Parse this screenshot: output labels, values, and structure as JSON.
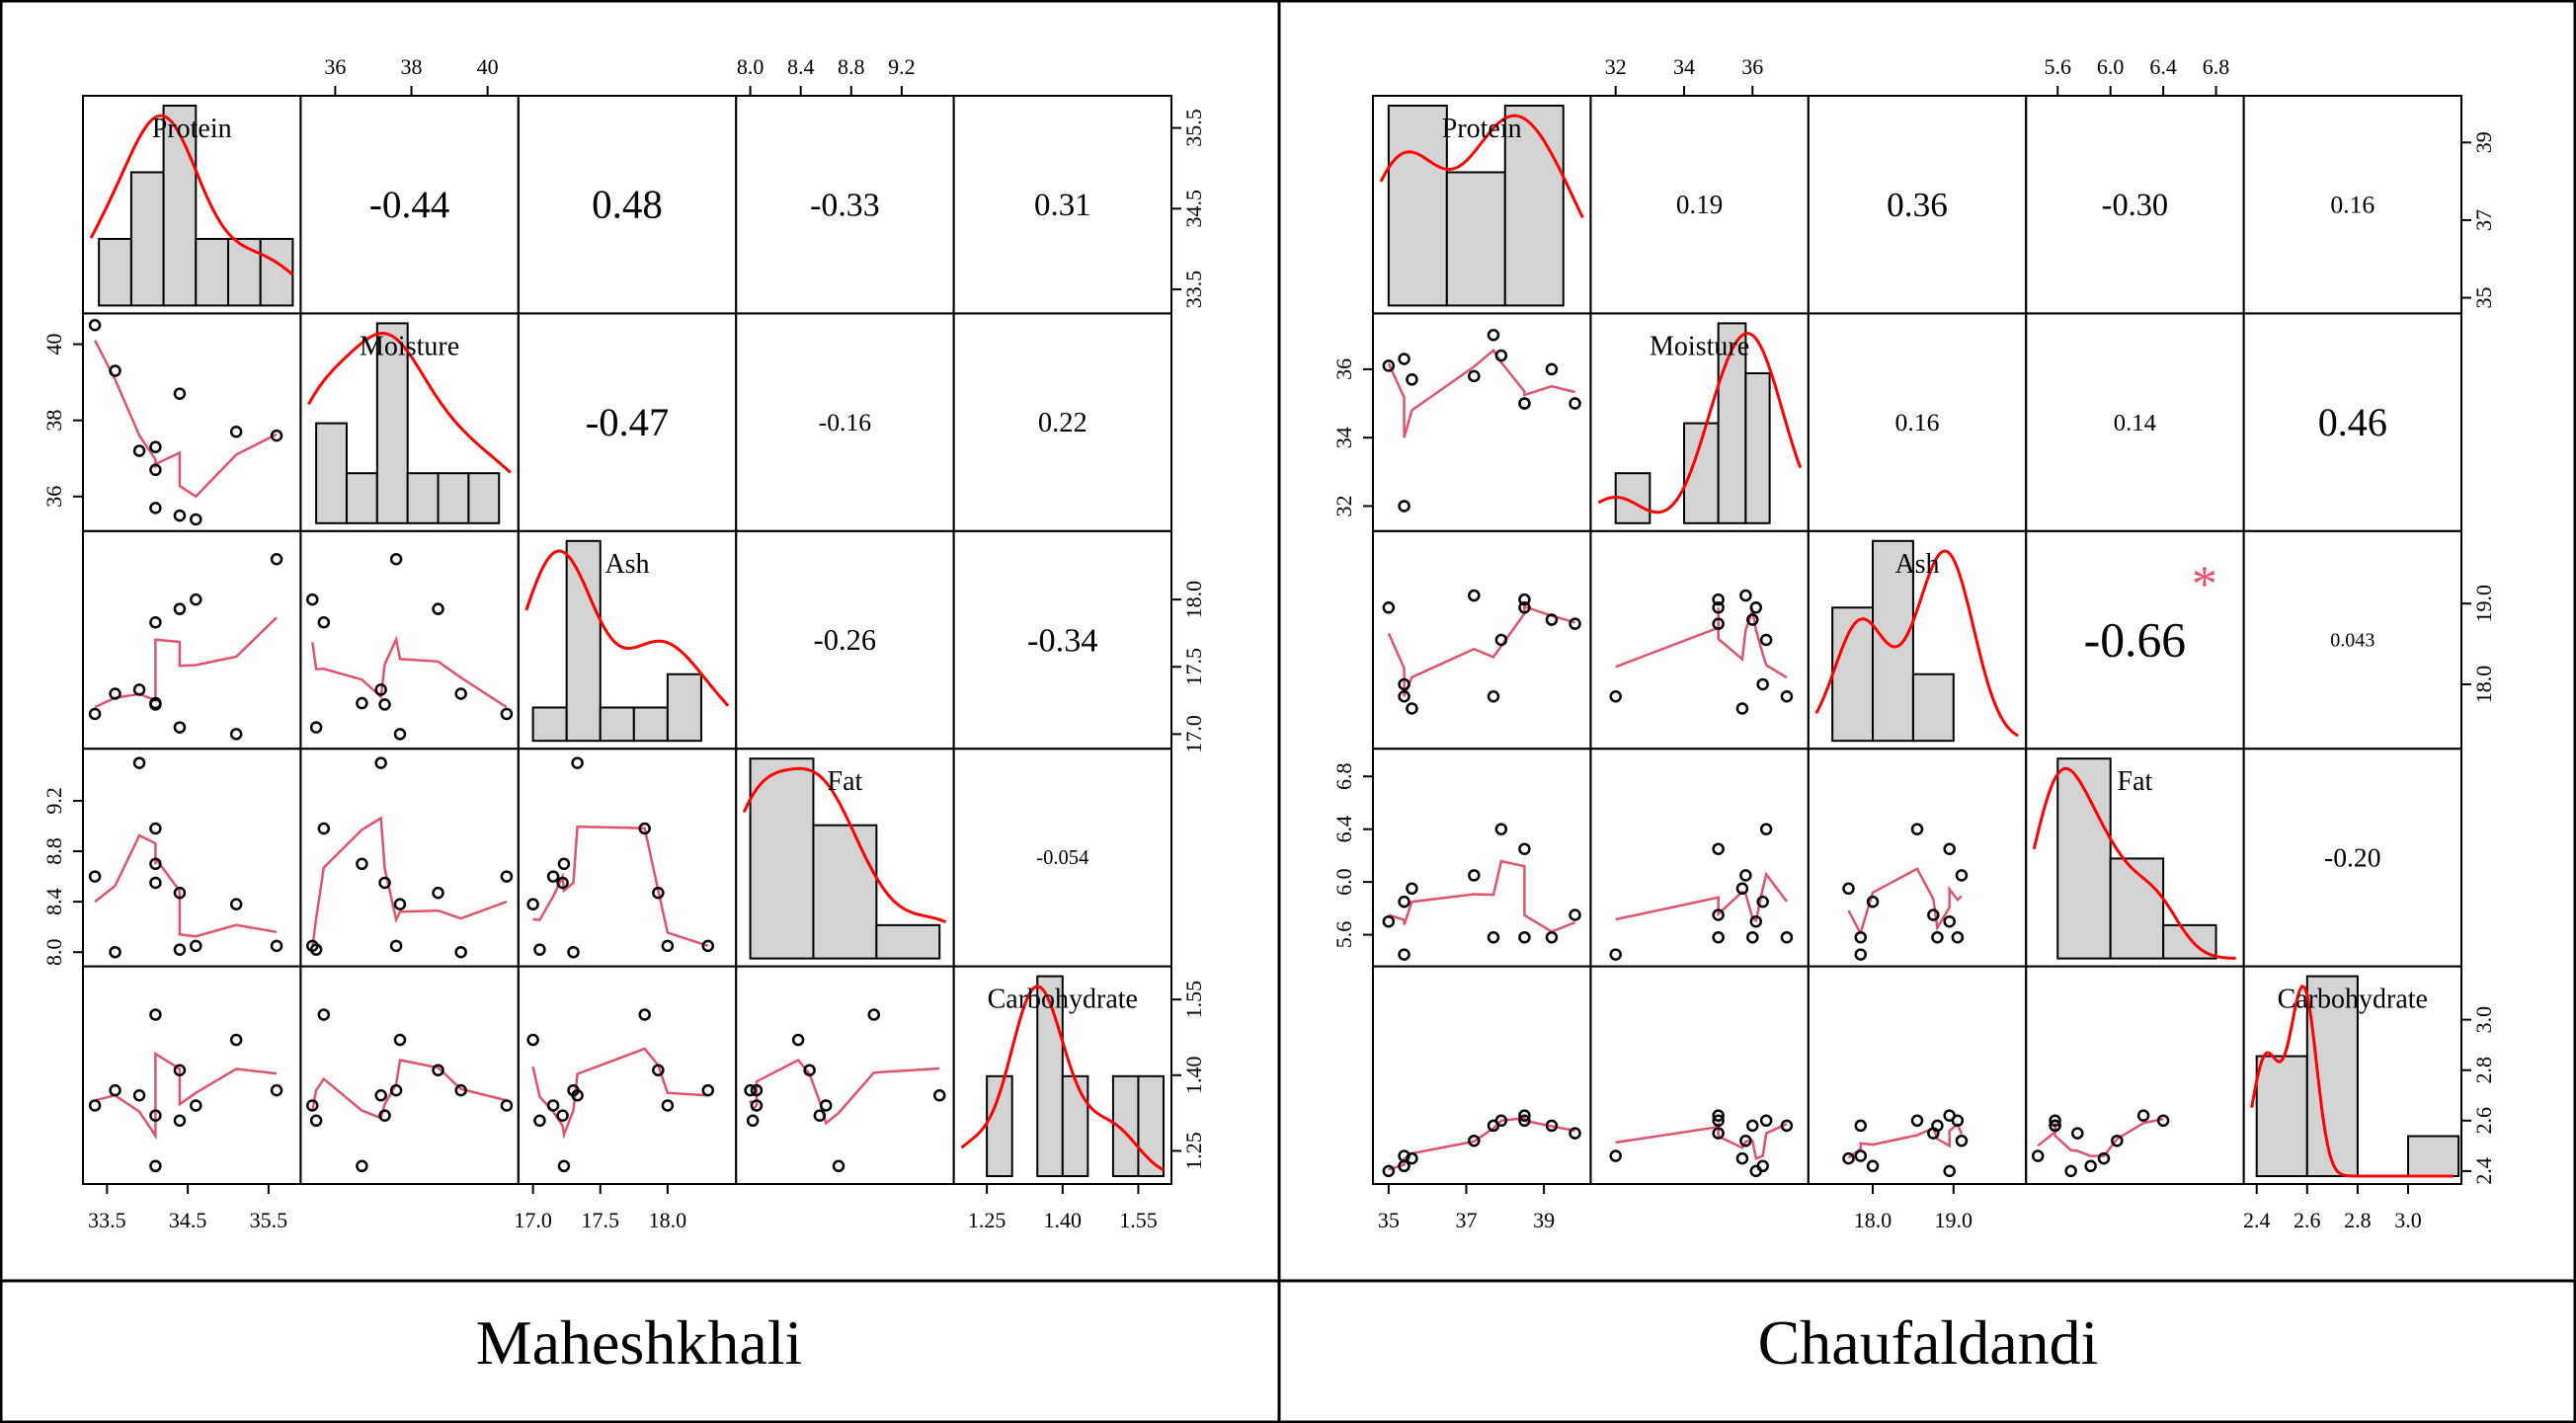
{
  "figure": {
    "variables": [
      "Protein",
      "Moisture",
      "Ash",
      "Fat",
      "Carbohydrate"
    ]
  },
  "chart_data": [
    {
      "type": "scatter",
      "subtype": "correlation-matrix",
      "title": "Maheshkhali",
      "variables": [
        "Protein",
        "Moisture",
        "Ash",
        "Fat",
        "Carbohydrate"
      ],
      "correlations": [
        [
          null,
          -0.44,
          0.48,
          -0.33,
          0.31
        ],
        [
          null,
          null,
          -0.47,
          -0.16,
          0.22
        ],
        [
          null,
          null,
          null,
          -0.26,
          -0.34
        ],
        [
          null,
          null,
          null,
          null,
          -0.054
        ],
        [
          null,
          null,
          null,
          null,
          null
        ]
      ],
      "correlation_labels": [
        [
          null,
          "-0.44",
          "0.48",
          "-0.33",
          "0.31"
        ],
        [
          null,
          null,
          "-0.47",
          "-0.16",
          "0.22"
        ],
        [
          null,
          null,
          null,
          "-0.26",
          "-0.34"
        ],
        [
          null,
          null,
          null,
          null,
          "-0.054"
        ],
        [
          null,
          null,
          null,
          null,
          null
        ]
      ],
      "significance": [
        [
          null,
          "",
          "",
          "",
          ""
        ],
        [
          null,
          null,
          "",
          "",
          ""
        ],
        [
          null,
          null,
          null,
          "",
          ""
        ],
        [
          null,
          null,
          null,
          null,
          ""
        ],
        [
          null,
          null,
          null,
          null,
          null
        ]
      ],
      "ranges": [
        [
          33.3,
          35.8
        ],
        [
          35.3,
          40.6
        ],
        [
          16.95,
          18.45
        ],
        [
          7.95,
          9.55
        ],
        [
          1.2,
          1.6
        ]
      ],
      "ticks": [
        [
          "33.5",
          "34.5",
          "35.5"
        ],
        [
          "36",
          "38",
          "40"
        ],
        [
          "17.0",
          "17.5",
          "18.0"
        ],
        [
          "8.0",
          "8.4",
          "8.8",
          "9.2"
        ],
        [
          "1.25",
          "1.40",
          "1.55"
        ]
      ],
      "observations": {
        "Protein": [
          33.35,
          33.6,
          33.9,
          34.1,
          34.1,
          34.1,
          34.4,
          34.4,
          34.6,
          35.1,
          35.6
        ],
        "Moisture": [
          40.5,
          39.3,
          37.2,
          36.7,
          37.3,
          35.7,
          38.7,
          35.5,
          35.4,
          37.7,
          37.6
        ],
        "Ash": [
          17.15,
          17.3,
          17.33,
          17.23,
          17.22,
          17.83,
          17.93,
          17.05,
          18.0,
          17.0,
          18.3
        ],
        "Fat": [
          8.6,
          8.0,
          9.5,
          8.7,
          8.55,
          8.98,
          8.47,
          8.02,
          8.05,
          8.38,
          8.05
        ],
        "Carbohydrate": [
          1.34,
          1.37,
          1.36,
          1.22,
          1.32,
          1.52,
          1.41,
          1.31,
          1.34,
          1.47,
          1.37
        ]
      },
      "histograms": {
        "Protein": {
          "edges": [
            33.4,
            33.8,
            34.2,
            34.6,
            35.0,
            35.4,
            35.8
          ],
          "counts": [
            1,
            2,
            3,
            1,
            1,
            1
          ]
        },
        "Moisture": {
          "edges": [
            35.5,
            36.3,
            37.1,
            37.9,
            38.7,
            39.5,
            40.3
          ],
          "counts": [
            2,
            1,
            4,
            1,
            1,
            1
          ]
        },
        "Ash": {
          "edges": [
            17.0,
            17.25,
            17.5,
            17.75,
            18.0,
            18.25
          ],
          "counts": [
            1,
            6,
            1,
            1,
            2
          ]
        },
        "Fat": {
          "edges": [
            8.0,
            8.5,
            9.0,
            9.5
          ],
          "counts": [
            3,
            2,
            0.5
          ]
        },
        "Carbohydrate": {
          "edges": [
            1.25,
            1.3,
            1.35,
            1.4,
            1.45,
            1.5,
            1.55,
            1.6
          ],
          "counts": [
            1,
            0,
            2,
            1,
            0,
            1,
            1
          ]
        }
      }
    },
    {
      "type": "scatter",
      "subtype": "correlation-matrix",
      "title": "Chaufaldandi",
      "variables": [
        "Protein",
        "Moisture",
        "Ash",
        "Fat",
        "Carbohydrate"
      ],
      "correlations": [
        [
          null,
          0.19,
          0.36,
          -0.3,
          0.16
        ],
        [
          null,
          null,
          0.16,
          0.14,
          0.46
        ],
        [
          null,
          null,
          null,
          -0.66,
          0.043
        ],
        [
          null,
          null,
          null,
          null,
          -0.2
        ],
        [
          null,
          null,
          null,
          null,
          null
        ]
      ],
      "correlation_labels": [
        [
          null,
          "0.19",
          "0.36",
          "-0.30",
          "0.16"
        ],
        [
          null,
          null,
          "0.16",
          "0.14",
          "0.46"
        ],
        [
          null,
          null,
          null,
          "-0.66",
          "0.043"
        ],
        [
          null,
          null,
          null,
          null,
          "-0.20"
        ],
        [
          null,
          null,
          null,
          null,
          null
        ]
      ],
      "significance": [
        [
          null,
          "",
          "",
          "",
          ""
        ],
        [
          null,
          null,
          "",
          "",
          ""
        ],
        [
          null,
          null,
          null,
          "*",
          ""
        ],
        [
          null,
          null,
          null,
          null,
          ""
        ],
        [
          null,
          null,
          null,
          null,
          null
        ]
      ],
      "ranges": [
        [
          34.8,
          40.0
        ],
        [
          31.5,
          37.4
        ],
        [
          17.3,
          19.8
        ],
        [
          5.42,
          6.95
        ],
        [
          2.38,
          3.18
        ]
      ],
      "ticks": [
        [
          "35",
          "37",
          "39"
        ],
        [
          "32",
          "34",
          "36"
        ],
        [
          "18.0",
          "19.0"
        ],
        [
          "5.6",
          "6.0",
          "6.4",
          "6.8"
        ],
        [
          "2.4",
          "2.6",
          "2.8",
          "3.0"
        ]
      ],
      "observations": {
        "Protein": [
          35.0,
          35.4,
          35.4,
          35.6,
          37.2,
          37.7,
          37.9,
          38.5,
          38.5,
          39.2,
          39.8
        ],
        "Moisture": [
          36.1,
          36.3,
          32.0,
          35.7,
          35.8,
          37.0,
          36.4,
          35.0,
          35.0,
          36.0,
          35.0
        ],
        "Ash": [
          18.95,
          18.0,
          17.85,
          17.7,
          19.1,
          17.85,
          18.55,
          18.95,
          19.05,
          18.8,
          18.75
        ],
        "Fat": [
          5.7,
          5.85,
          5.45,
          5.95,
          6.05,
          5.58,
          6.4,
          6.25,
          5.58,
          5.58,
          5.75
        ],
        "Carbohydrate": [
          2.4,
          2.42,
          2.46,
          2.45,
          2.52,
          2.58,
          2.6,
          2.62,
          2.6,
          2.58,
          2.55
        ]
      },
      "histograms": {
        "Protein": {
          "edges": [
            35.0,
            36.5,
            38.0,
            39.5
          ],
          "counts": [
            3,
            2,
            3
          ]
        },
        "Moisture": {
          "edges": [
            32.0,
            33.0,
            34.0,
            35.0,
            35.8,
            36.5
          ],
          "counts": [
            1,
            0,
            2,
            4,
            3
          ]
        },
        "Ash": {
          "edges": [
            17.5,
            18.0,
            18.5,
            19.0
          ],
          "counts": [
            2,
            3,
            1
          ]
        },
        "Fat": {
          "edges": [
            5.6,
            6.0,
            6.4,
            6.8
          ],
          "counts": [
            6,
            3,
            1
          ]
        },
        "Carbohydrate": {
          "edges": [
            2.4,
            2.6,
            2.8,
            3.0,
            3.2
          ],
          "counts": [
            3,
            5,
            0,
            1
          ]
        }
      }
    }
  ]
}
